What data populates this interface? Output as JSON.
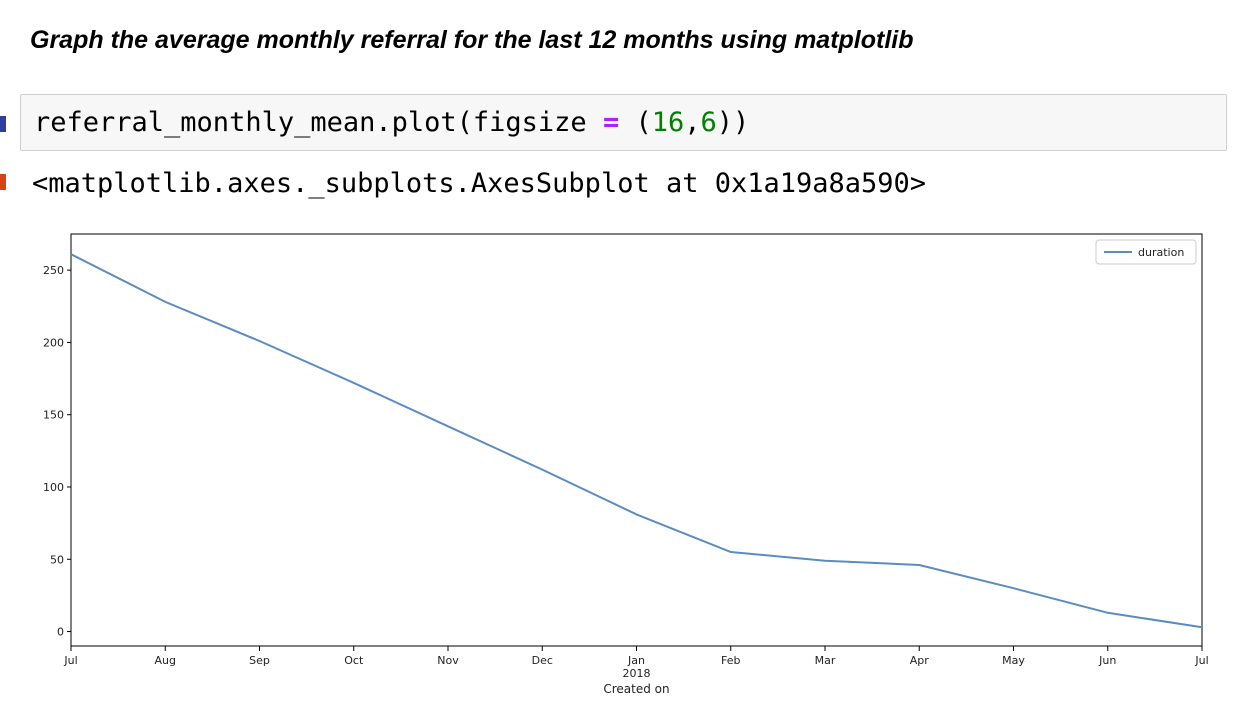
{
  "heading": "Graph the average monthly referral for the last 12 months using matplotlib",
  "cell": {
    "code_name": "referral_monthly_mean.plot(figsize",
    "code_op": "=",
    "code_paren_open": "(",
    "code_num1": "16",
    "code_comma": ",",
    "code_num2": "6",
    "code_paren_close": "))",
    "output": "<matplotlib.axes._subplots.AxesSubplot at 0x1a19a8a590>"
  },
  "colors": {
    "line": "#5b8cbf",
    "prompt_in": "#303F9F",
    "prompt_out": "#D84315"
  },
  "chart_data": {
    "type": "line",
    "categories": [
      "Jul",
      "Aug",
      "Sep",
      "Oct",
      "Nov",
      "Dec",
      "Jan",
      "Feb",
      "Mar",
      "Apr",
      "May",
      "Jun",
      "Jul"
    ],
    "year_label": "2018",
    "year_label_under": "Jan",
    "series": [
      {
        "name": "duration",
        "values": [
          261,
          228,
          201,
          172,
          142,
          112,
          81,
          55,
          49,
          46,
          30,
          13,
          3
        ]
      }
    ],
    "yticks": [
      0,
      50,
      100,
      150,
      200,
      250
    ],
    "ylim": [
      -10,
      275
    ],
    "xlabel": "Created on",
    "ylabel": "",
    "legend": "top-right",
    "grid": false
  }
}
